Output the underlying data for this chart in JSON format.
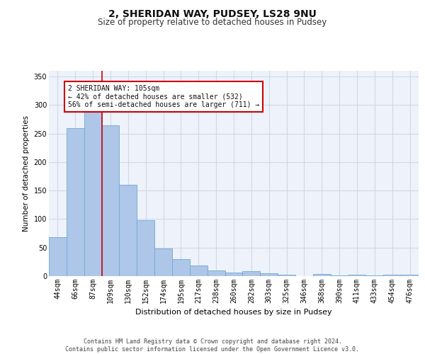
{
  "title1": "2, SHERIDAN WAY, PUDSEY, LS28 9NU",
  "title2": "Size of property relative to detached houses in Pudsey",
  "xlabel": "Distribution of detached houses by size in Pudsey",
  "ylabel": "Number of detached properties",
  "categories": [
    "44sqm",
    "66sqm",
    "87sqm",
    "109sqm",
    "130sqm",
    "152sqm",
    "174sqm",
    "195sqm",
    "217sqm",
    "238sqm",
    "260sqm",
    "282sqm",
    "303sqm",
    "325sqm",
    "346sqm",
    "368sqm",
    "390sqm",
    "411sqm",
    "433sqm",
    "454sqm",
    "476sqm"
  ],
  "values": [
    68,
    260,
    295,
    265,
    160,
    98,
    48,
    30,
    19,
    10,
    6,
    9,
    5,
    3,
    0,
    4,
    1,
    2,
    1,
    3,
    3
  ],
  "bar_color": "#aec6e8",
  "bar_edge_color": "#6fa8d0",
  "grid_color": "#d0d8e8",
  "background_color": "#eef2fa",
  "vline_index": 3,
  "vline_color": "#cc0000",
  "annotation_text": "2 SHERIDAN WAY: 105sqm\n← 42% of detached houses are smaller (532)\n56% of semi-detached houses are larger (711) →",
  "annotation_box_color": "#ffffff",
  "annotation_box_edge": "#cc0000",
  "ylim": [
    0,
    360
  ],
  "yticks": [
    0,
    50,
    100,
    150,
    200,
    250,
    300,
    350
  ],
  "footer": "Contains HM Land Registry data © Crown copyright and database right 2024.\nContains public sector information licensed under the Open Government Licence v3.0.",
  "title1_fontsize": 10,
  "title2_fontsize": 8.5,
  "xlabel_fontsize": 8,
  "ylabel_fontsize": 7.5,
  "tick_fontsize": 7,
  "footer_fontsize": 6,
  "annot_fontsize": 7
}
